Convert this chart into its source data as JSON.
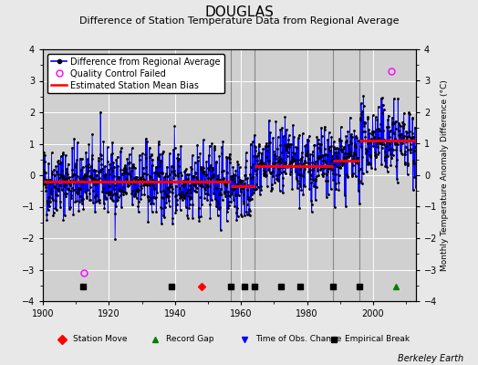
{
  "title": "DOUGLAS",
  "subtitle": "Difference of Station Temperature Data from Regional Average",
  "ylabel": "Monthly Temperature Anomaly Difference (°C)",
  "xlim": [
    1900,
    2013
  ],
  "ylim": [
    -4,
    4
  ],
  "yticks": [
    -4,
    -3,
    -2,
    -1,
    0,
    1,
    2,
    3,
    4
  ],
  "xticks": [
    1900,
    1920,
    1940,
    1960,
    1980,
    2000
  ],
  "background_color": "#e8e8e8",
  "plot_bg_color": "#d0d0d0",
  "grid_color": "#b0b0b0",
  "title_fontsize": 11,
  "subtitle_fontsize": 8,
  "legend_fontsize": 7,
  "tick_fontsize": 7,
  "credit": "Berkeley Earth",
  "seed": 42,
  "station_moves": [
    1948
  ],
  "record_gaps": [
    2007
  ],
  "time_obs_changes": [],
  "empirical_breaks": [
    1912,
    1939,
    1957,
    1961,
    1964,
    1972,
    1978,
    1988,
    1996
  ],
  "vertical_lines": [
    1957,
    1964,
    1988,
    1996
  ],
  "segment_biases": [
    {
      "start": 1900,
      "end": 1957,
      "bias": -0.2
    },
    {
      "start": 1957,
      "end": 1964,
      "bias": -0.35
    },
    {
      "start": 1964,
      "end": 1988,
      "bias": 0.3
    },
    {
      "start": 1988,
      "end": 1996,
      "bias": 0.45
    },
    {
      "start": 1996,
      "end": 2013,
      "bias": 1.1
    }
  ],
  "qc_failed_points": [
    {
      "year": 1912.5,
      "value": -3.1
    },
    {
      "year": 2005.5,
      "value": 3.3
    }
  ]
}
